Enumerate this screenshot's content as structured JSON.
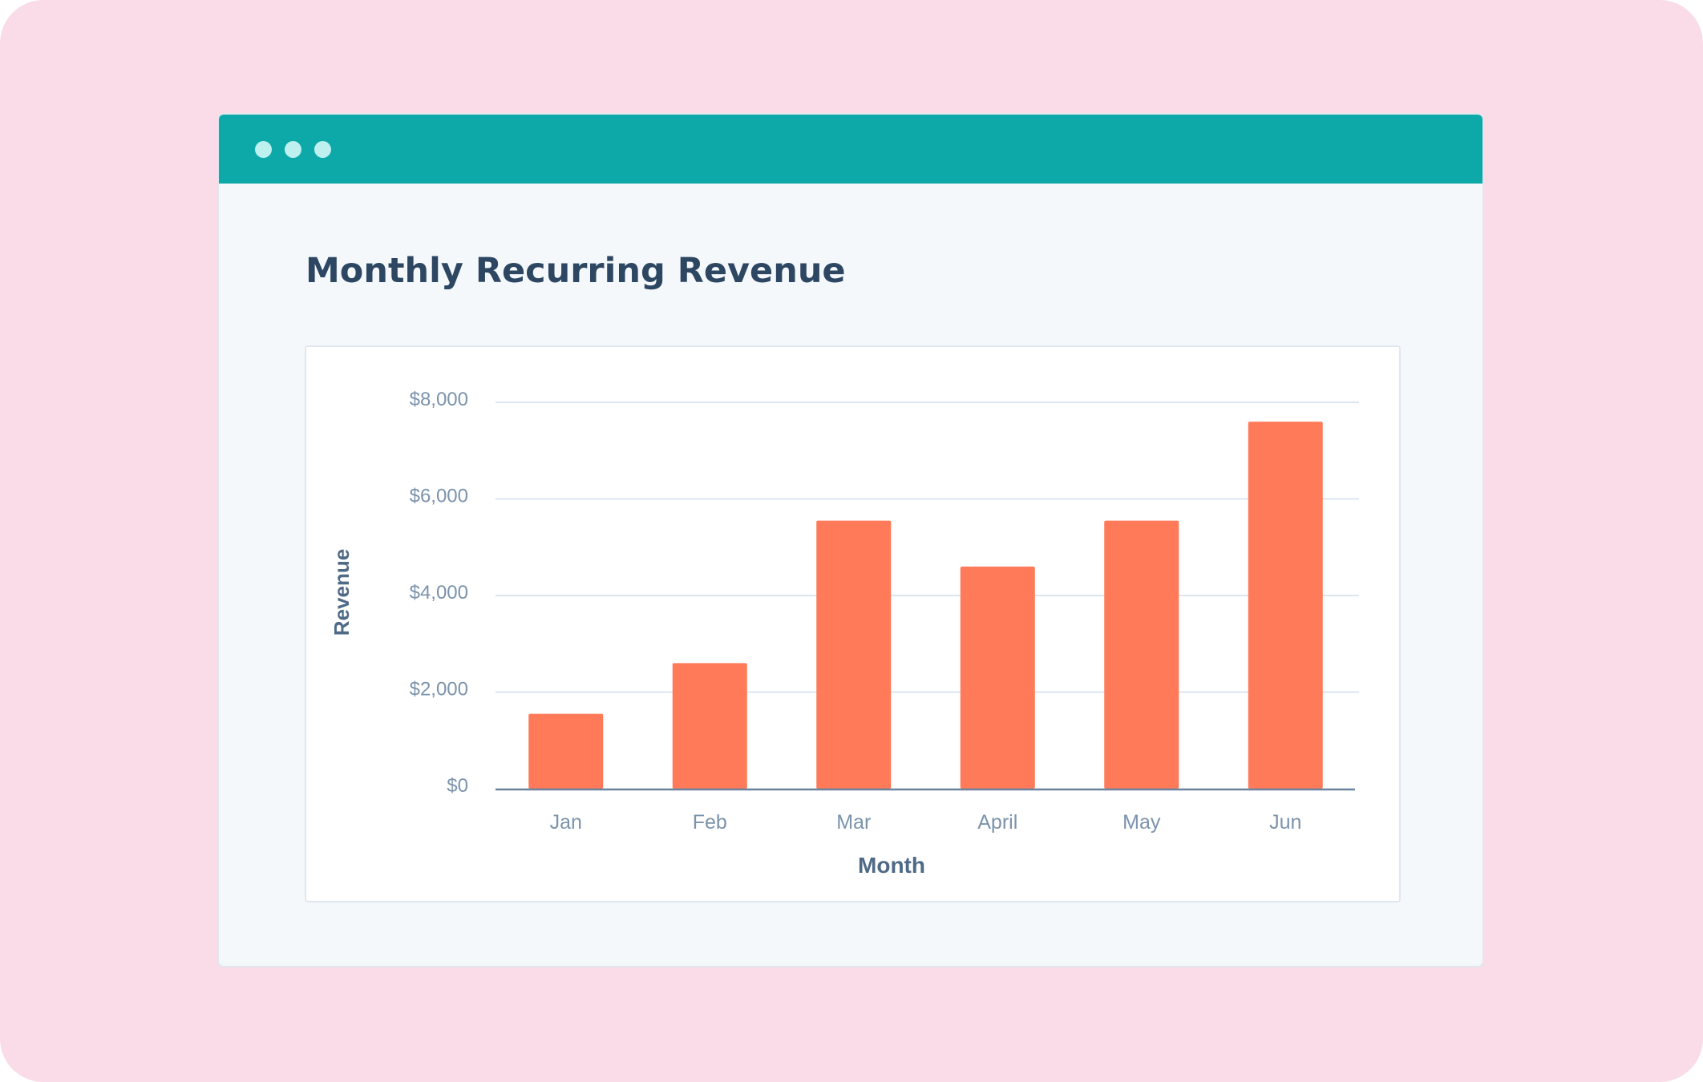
{
  "window": {
    "dots": [
      "dot",
      "dot",
      "dot"
    ],
    "colors": {
      "titlebar": "#0da8a8",
      "dot": "#bdf0ee",
      "background": "#fadbe8",
      "bar": "#ff7a59"
    }
  },
  "page": {
    "title": "Monthly Recurring Revenue"
  },
  "chart_data": {
    "type": "bar",
    "title": "Monthly Recurring Revenue",
    "categories": [
      "Jan",
      "Feb",
      "Mar",
      "April",
      "May",
      "Jun"
    ],
    "values": [
      1550,
      2600,
      5550,
      4600,
      5550,
      7600
    ],
    "xlabel": "Month",
    "ylabel": "Revenue",
    "ylim": [
      0,
      8000
    ],
    "yticks": [
      0,
      2000,
      4000,
      6000,
      8000
    ],
    "ytick_labels": [
      "$0",
      "$2,000",
      "$4,000",
      "$6,000",
      "$8,000"
    ],
    "grid": true,
    "legend": "none"
  }
}
